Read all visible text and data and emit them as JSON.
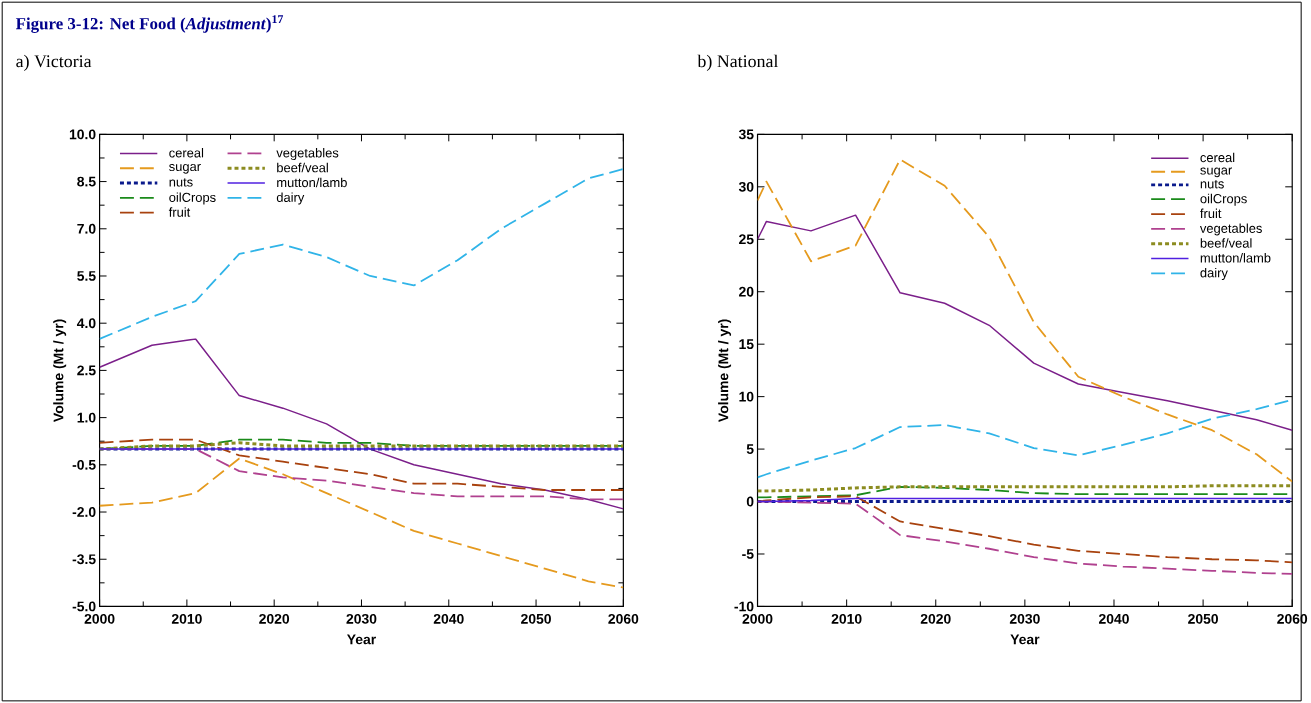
{
  "chart_data": [
    {
      "type": "line",
      "title": "Figure 3-12: Net Food (*Adjustment*)$^{17}$",
      "subtitle": "a) Victoria",
      "xlabel": "Year",
      "ylabel": "Volume (Mt / yr)",
      "x": [
        2000,
        2006,
        2011,
        2016,
        2021,
        2026,
        2031,
        2036,
        2041,
        2046,
        2051,
        2056,
        2060
      ],
      "xlim": [
        2000,
        2060
      ],
      "xticks": [
        2000,
        2010,
        2020,
        2030,
        2040,
        2050,
        2060
      ],
      "ylim": [
        -5,
        10
      ],
      "yticks": [
        {
          "value": -5,
          "label": "-5.0"
        },
        {
          "value": -3.5,
          "label": "-3.5"
        },
        {
          "value": -2,
          "label": "-2.0"
        },
        {
          "value": -0.5,
          "label": "-0.5"
        },
        {
          "value": 1,
          "label": "1.0"
        },
        {
          "value": 2.5,
          "label": "2.5"
        },
        {
          "value": 4,
          "label": "4.0"
        },
        {
          "value": 5.5,
          "label": "5.5"
        },
        {
          "value": 7,
          "label": "7.0"
        },
        {
          "value": 8.5,
          "label": "8.5"
        },
        {
          "value": 10,
          "label": "10.0"
        }
      ],
      "legend": "top left",
      "grid": false,
      "series": [
        {
          "name": "cereal",
          "color": "#7b1f8a",
          "line_style": "solid",
          "values": [
            2.6,
            3.3,
            3.5,
            1.7,
            1.3,
            0.8,
            0.0,
            -0.5,
            -0.8,
            -1.1,
            -1.3,
            -1.6,
            -1.9
          ]
        },
        {
          "name": "sugar",
          "color": "#e59a1e",
          "line_style": "dashed",
          "values": [
            -1.8,
            -1.7,
            -1.4,
            -0.3,
            -0.8,
            -1.4,
            -2.0,
            -2.6,
            -3.0,
            -3.4,
            -3.8,
            -4.2,
            -4.4
          ]
        },
        {
          "name": "nuts",
          "color": "#0a1a8c",
          "line_style": "dotted",
          "values": [
            0,
            0,
            0,
            0,
            0,
            0,
            0,
            0,
            0,
            0,
            0,
            0,
            0
          ]
        },
        {
          "name": "oilCrops",
          "color": "#1a8a1a",
          "line_style": "dashed",
          "values": [
            0,
            0.1,
            0.1,
            0.3,
            0.3,
            0.2,
            0.2,
            0.1,
            0.1,
            0.1,
            0.1,
            0.1,
            0.1
          ]
        },
        {
          "name": "fruit",
          "color": "#a8420e",
          "line_style": "dashed",
          "values": [
            0.2,
            0.3,
            0.3,
            -0.2,
            -0.4,
            -0.6,
            -0.8,
            -1.1,
            -1.1,
            -1.2,
            -1.3,
            -1.3,
            -1.3
          ]
        },
        {
          "name": "vegetables",
          "color": "#b0418f",
          "line_style": "dashed",
          "values": [
            0,
            0,
            0,
            -0.7,
            -0.9,
            -1.0,
            -1.2,
            -1.4,
            -1.5,
            -1.5,
            -1.5,
            -1.6,
            -1.6
          ]
        },
        {
          "name": "beef/veal",
          "color": "#8c8c20",
          "line_style": "dotted",
          "values": [
            0,
            0.1,
            0.1,
            0.2,
            0.1,
            0.1,
            0.1,
            0.1,
            0.1,
            0.1,
            0.1,
            0.1,
            0.1
          ]
        },
        {
          "name": "mutton/lamb",
          "color": "#5020e0",
          "line_style": "solid",
          "values": [
            0,
            0,
            0,
            0,
            0,
            0,
            0,
            0,
            0,
            0,
            0,
            0,
            0
          ]
        },
        {
          "name": "dairy",
          "color": "#30b4e8",
          "line_style": "dashed",
          "values": [
            3.5,
            4.2,
            4.7,
            6.2,
            6.5,
            6.1,
            5.5,
            5.2,
            6.0,
            7.0,
            7.8,
            8.6,
            8.9
          ]
        }
      ]
    },
    {
      "type": "line",
      "title": "b) National",
      "xlabel": "Year",
      "ylabel": "Volume (Mt / yr)",
      "x": [
        2000,
        2001,
        2006,
        2011,
        2016,
        2021,
        2026,
        2031,
        2036,
        2041,
        2046,
        2051,
        2056,
        2060
      ],
      "xlim": [
        2000,
        2060
      ],
      "xticks": [
        2000,
        2010,
        2020,
        2030,
        2040,
        2050,
        2060
      ],
      "ylim": [
        -10,
        35
      ],
      "yticks": [
        -10,
        -5,
        0,
        5,
        10,
        15,
        20,
        25,
        30,
        35
      ],
      "legend": "top right",
      "grid": false,
      "series": [
        {
          "name": "cereal",
          "color": "#7b1f8a",
          "line_style": "solid",
          "values": [
            25.0,
            26.7,
            25.8,
            27.3,
            19.9,
            18.9,
            16.8,
            13.2,
            11.2,
            10.4,
            9.6,
            8.7,
            7.8,
            6.8
          ]
        },
        {
          "name": "sugar",
          "color": "#e59a1e",
          "line_style": "dashed",
          "values": [
            28.7,
            30.5,
            22.9,
            24.4,
            32.6,
            30.1,
            25.2,
            17.1,
            11.9,
            10.0,
            8.3,
            6.8,
            4.5,
            1.9
          ]
        },
        {
          "name": "nuts",
          "color": "#0a1a8c",
          "line_style": "dotted",
          "values": [
            0,
            0,
            0,
            0,
            0,
            0,
            0,
            0,
            0,
            0,
            0,
            0,
            0,
            0
          ]
        },
        {
          "name": "oilCrops",
          "color": "#1a8a1a",
          "line_style": "dashed",
          "values": [
            0.4,
            0.4,
            0.5,
            0.6,
            1.4,
            1.3,
            1.1,
            0.8,
            0.7,
            0.7,
            0.7,
            0.7,
            0.7,
            0.7
          ]
        },
        {
          "name": "fruit",
          "color": "#a8420e",
          "line_style": "dashed",
          "values": [
            0,
            0.1,
            0.4,
            0.5,
            -1.9,
            -2.6,
            -3.3,
            -4.1,
            -4.7,
            -5.0,
            -5.3,
            -5.5,
            -5.6,
            -5.8
          ]
        },
        {
          "name": "vegetables",
          "color": "#b0418f",
          "line_style": "dashed",
          "values": [
            0,
            0,
            -0.1,
            -0.2,
            -3.2,
            -3.8,
            -4.5,
            -5.3,
            -5.9,
            -6.2,
            -6.4,
            -6.6,
            -6.8,
            -6.9
          ]
        },
        {
          "name": "beef/veal",
          "color": "#8c8c20",
          "line_style": "dotted",
          "values": [
            1.0,
            1.0,
            1.1,
            1.3,
            1.4,
            1.4,
            1.4,
            1.4,
            1.4,
            1.4,
            1.4,
            1.5,
            1.5,
            1.5
          ]
        },
        {
          "name": "mutton/lamb",
          "color": "#5020e0",
          "line_style": "solid",
          "values": [
            0,
            0,
            0.1,
            0.3,
            0.3,
            0.3,
            0.3,
            0.3,
            0.3,
            0.3,
            0.3,
            0.3,
            0.3,
            0.3
          ]
        },
        {
          "name": "dairy",
          "color": "#30b4e8",
          "line_style": "dashed",
          "values": [
            2.3,
            2.6,
            3.9,
            5.1,
            7.1,
            7.3,
            6.5,
            5.1,
            4.4,
            5.4,
            6.5,
            7.9,
            8.8,
            9.7
          ]
        }
      ]
    }
  ]
}
